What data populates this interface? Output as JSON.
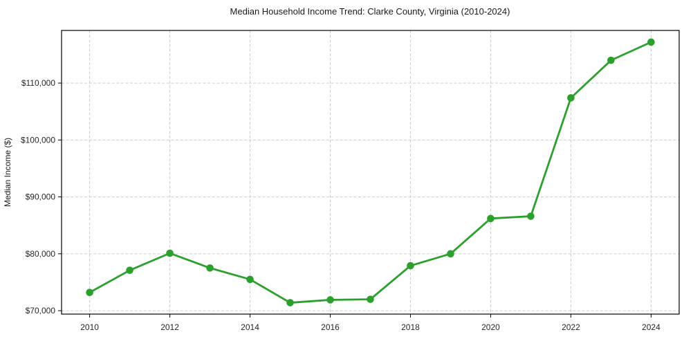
{
  "chart_data": {
    "type": "line",
    "title": "Median Household Income Trend: Clarke County, Virginia (2010-2024)",
    "xlabel": "",
    "ylabel": "Median Income ($)",
    "x": [
      2010,
      2011,
      2012,
      2013,
      2014,
      2015,
      2016,
      2017,
      2018,
      2019,
      2020,
      2021,
      2022,
      2023,
      2024
    ],
    "series": [
      {
        "name": "Median Household Income",
        "values": [
          73200,
          77100,
          80100,
          77500,
          75500,
          71400,
          71900,
          72000,
          77900,
          80000,
          86200,
          86600,
          107400,
          114000,
          117200
        ]
      }
    ],
    "xticks": [
      2010,
      2012,
      2014,
      2016,
      2018,
      2020,
      2022,
      2024
    ],
    "xtick_labels": [
      "2010",
      "2012",
      "2014",
      "2016",
      "2018",
      "2020",
      "2022",
      "2024"
    ],
    "yticks": [
      70000,
      80000,
      90000,
      100000,
      110000
    ],
    "ytick_labels": [
      "$70,000",
      "$80,000",
      "$90,000",
      "$100,000",
      "$110,000"
    ],
    "xlim": [
      2009.3,
      2024.7
    ],
    "ylim": [
      69400,
      119250
    ],
    "grid": true,
    "grid_style": "dashed",
    "legend": "none",
    "marker": "circle",
    "colors": {
      "line": "#2ca02c",
      "marker": "#2ca02c",
      "grid": "#cccccc",
      "background": "#ffffff"
    }
  }
}
